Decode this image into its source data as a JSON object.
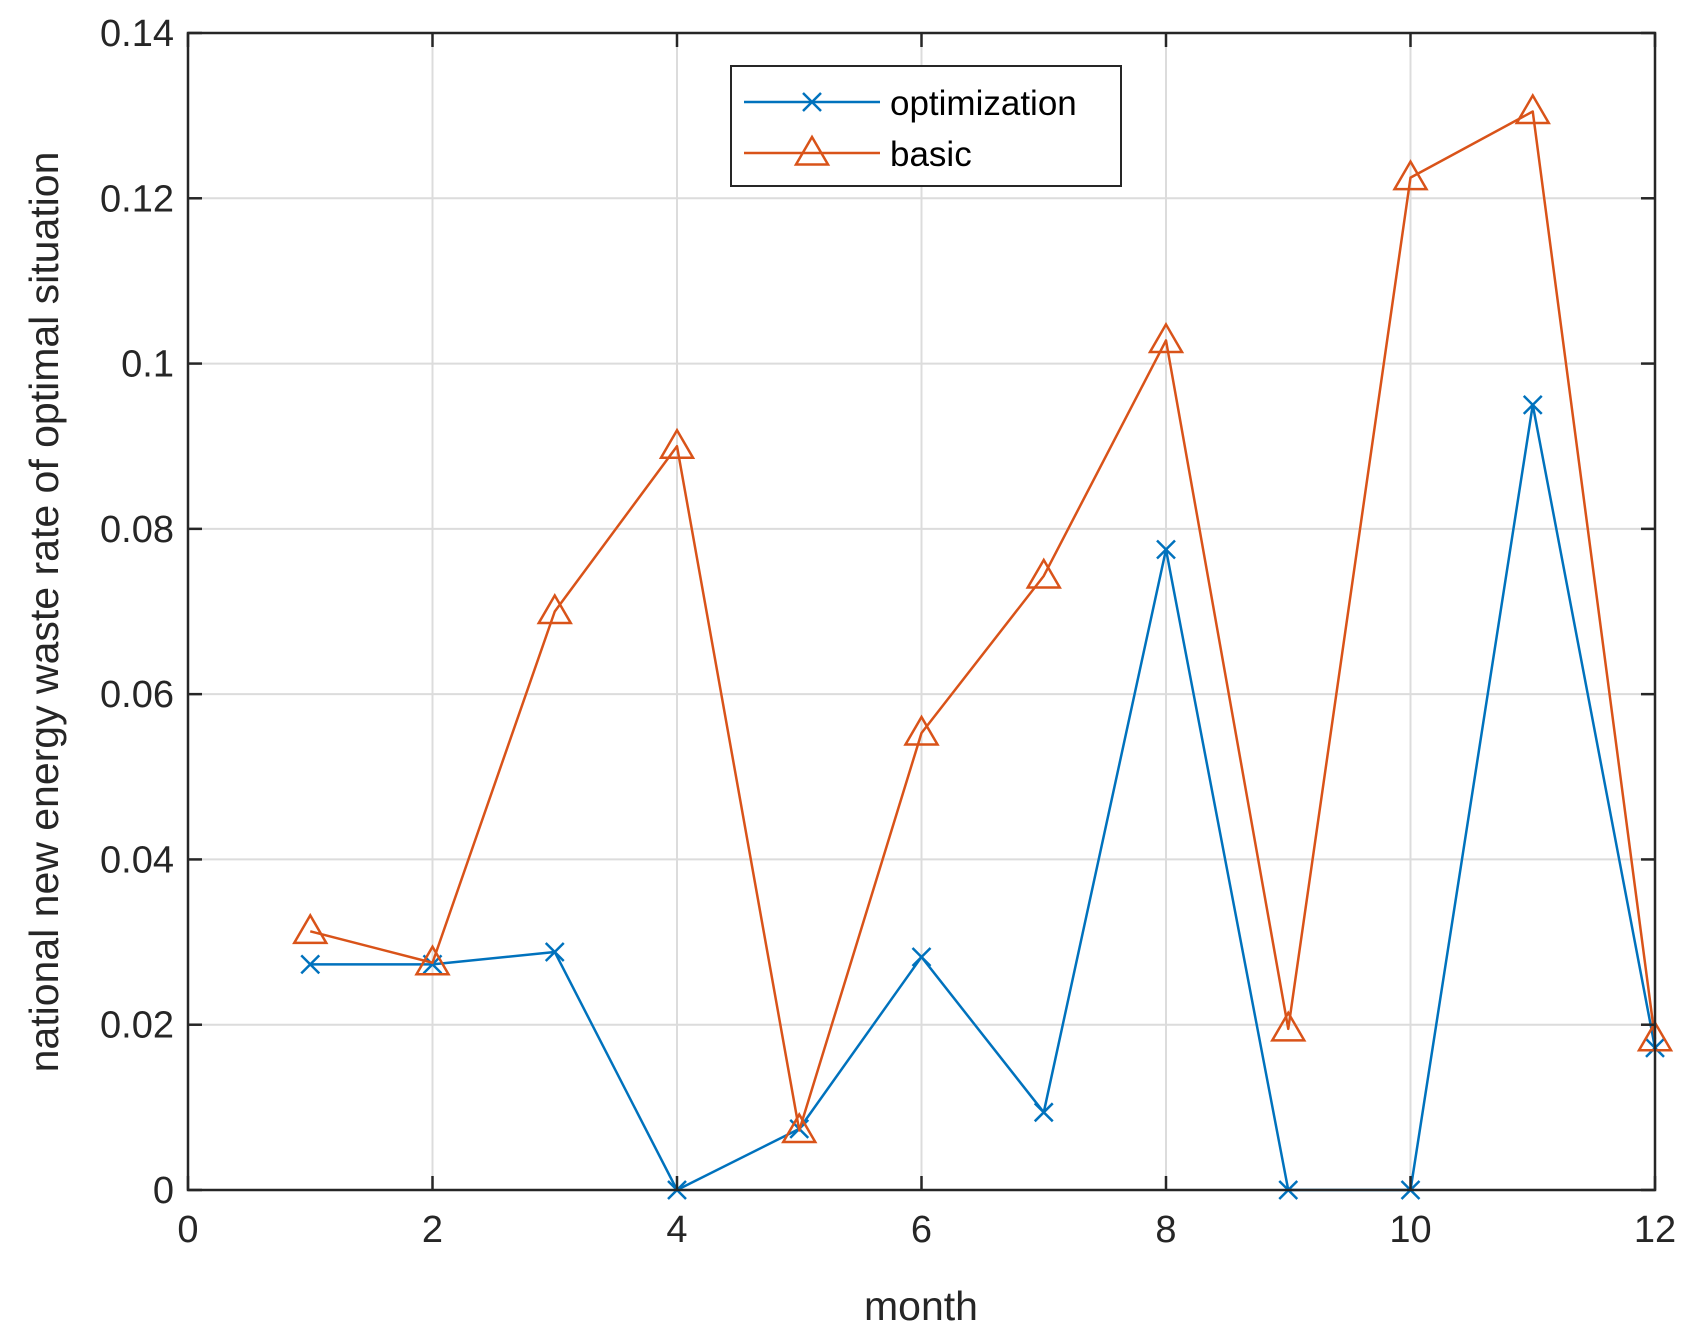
{
  "chart_data": {
    "type": "line",
    "title": "",
    "xlabel": "month",
    "ylabel": "national new energy waste rate of optimal situation",
    "xlim": [
      0,
      12
    ],
    "ylim": [
      0,
      0.14
    ],
    "grid": true,
    "legend_position": "top-center",
    "x_ticks": [
      {
        "value": 0,
        "label": "0"
      },
      {
        "value": 2,
        "label": "2"
      },
      {
        "value": 4,
        "label": "4"
      },
      {
        "value": 6,
        "label": "6"
      },
      {
        "value": 8,
        "label": "8"
      },
      {
        "value": 10,
        "label": "10"
      },
      {
        "value": 12,
        "label": "12"
      }
    ],
    "y_ticks": [
      {
        "value": 0,
        "label": "0"
      },
      {
        "value": 0.02,
        "label": "0.02"
      },
      {
        "value": 0.04,
        "label": "0.04"
      },
      {
        "value": 0.06,
        "label": "0.06"
      },
      {
        "value": 0.08,
        "label": "0.08"
      },
      {
        "value": 0.1,
        "label": "0.1"
      },
      {
        "value": 0.12,
        "label": "0.12"
      },
      {
        "value": 0.14,
        "label": "0.14"
      }
    ],
    "x": [
      1,
      2,
      3,
      4,
      5,
      6,
      7,
      8,
      9,
      10,
      11,
      12
    ],
    "series": [
      {
        "name": "optimization",
        "color": "#0072BD",
        "marker": "x",
        "values": [
          0.0273,
          0.0273,
          0.0288,
          0.0,
          0.0074,
          0.0282,
          0.0094,
          0.0775,
          0.0,
          0.0,
          0.095,
          0.0172
        ]
      },
      {
        "name": "basic",
        "color": "#D95319",
        "marker": "triangle",
        "values": [
          0.0313,
          0.0275,
          0.07,
          0.09,
          0.0072,
          0.0553,
          0.0743,
          0.1028,
          0.0195,
          0.1225,
          0.1305,
          0.0183
        ]
      }
    ]
  }
}
